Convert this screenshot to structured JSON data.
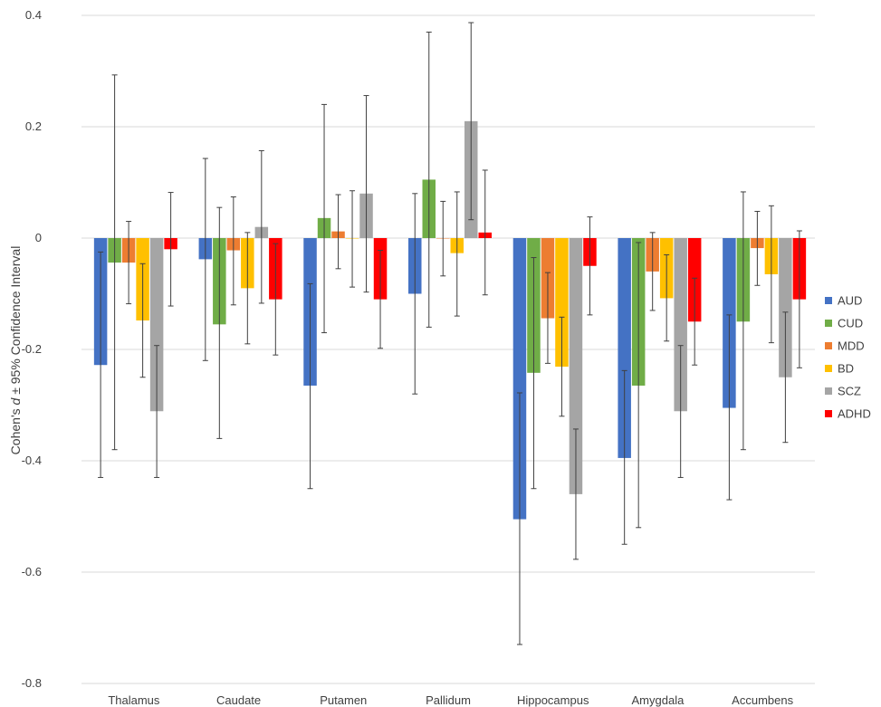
{
  "chart_data": {
    "type": "bar",
    "title": "",
    "xlabel": "",
    "ylabel": {
      "prefix": "Cohen's ",
      "italic": "d",
      "suffix": " ± 95% Confidence Interval"
    },
    "ylim": [
      -0.8,
      0.4
    ],
    "yticks": [
      0.4,
      0.2,
      0,
      -0.2,
      -0.4,
      -0.6,
      -0.8
    ],
    "ytick_labels": [
      "0.4",
      "0.2",
      "0",
      "-0.2",
      "-0.4",
      "-0.6",
      "-0.8"
    ],
    "grid": true,
    "legend_position": "right",
    "categories": [
      "Thalamus",
      "Caudate",
      "Putamen",
      "Pallidum",
      "Hippocampus",
      "Amygdala",
      "Accumbens"
    ],
    "series": [
      {
        "name": "AUD",
        "color": "#4472C4",
        "values": [
          -0.228,
          -0.038,
          -0.265,
          -0.1,
          -0.505,
          -0.395,
          -0.305
        ],
        "err_low": [
          -0.43,
          -0.22,
          -0.45,
          -0.28,
          -0.73,
          -0.55,
          -0.47
        ],
        "err_high": [
          -0.025,
          0.143,
          -0.082,
          0.08,
          -0.278,
          -0.238,
          -0.138
        ]
      },
      {
        "name": "CUD",
        "color": "#70AD47",
        "values": [
          -0.044,
          -0.155,
          0.036,
          0.105,
          -0.242,
          -0.265,
          -0.15
        ],
        "err_low": [
          -0.38,
          -0.36,
          -0.17,
          -0.16,
          -0.45,
          -0.52,
          -0.38
        ],
        "err_high": [
          0.293,
          0.055,
          0.24,
          0.37,
          -0.035,
          -0.008,
          0.083
        ]
      },
      {
        "name": "MDD",
        "color": "#ED7D31",
        "values": [
          -0.044,
          -0.022,
          0.012,
          0.0,
          -0.144,
          -0.06,
          -0.018
        ],
        "err_low": [
          -0.118,
          -0.12,
          -0.055,
          -0.068,
          -0.225,
          -0.13,
          -0.085
        ],
        "err_high": [
          0.03,
          0.074,
          0.078,
          0.066,
          -0.062,
          0.01,
          0.048
        ]
      },
      {
        "name": "BD",
        "color": "#FFC000",
        "values": [
          -0.148,
          -0.09,
          0.0,
          -0.027,
          -0.231,
          -0.108,
          -0.065
        ],
        "err_low": [
          -0.25,
          -0.19,
          -0.088,
          -0.14,
          -0.32,
          -0.185,
          -0.188
        ],
        "err_high": [
          -0.046,
          0.01,
          0.085,
          0.083,
          -0.142,
          -0.03,
          0.058
        ]
      },
      {
        "name": "SCZ",
        "color": "#A5A5A5",
        "values": [
          -0.311,
          0.02,
          0.08,
          0.21,
          -0.46,
          -0.311,
          -0.25
        ],
        "err_low": [
          -0.43,
          -0.117,
          -0.097,
          0.033,
          -0.577,
          -0.43,
          -0.367
        ],
        "err_high": [
          -0.193,
          0.157,
          0.256,
          0.387,
          -0.343,
          -0.193,
          -0.133
        ]
      },
      {
        "name": "ADHD",
        "color": "#FF0000",
        "values": [
          -0.02,
          -0.11,
          -0.11,
          0.01,
          -0.05,
          -0.15,
          -0.11
        ],
        "err_low": [
          -0.122,
          -0.21,
          -0.198,
          -0.102,
          -0.138,
          -0.228,
          -0.233
        ],
        "err_high": [
          0.082,
          -0.01,
          -0.022,
          0.122,
          0.038,
          -0.072,
          0.013
        ]
      }
    ]
  }
}
